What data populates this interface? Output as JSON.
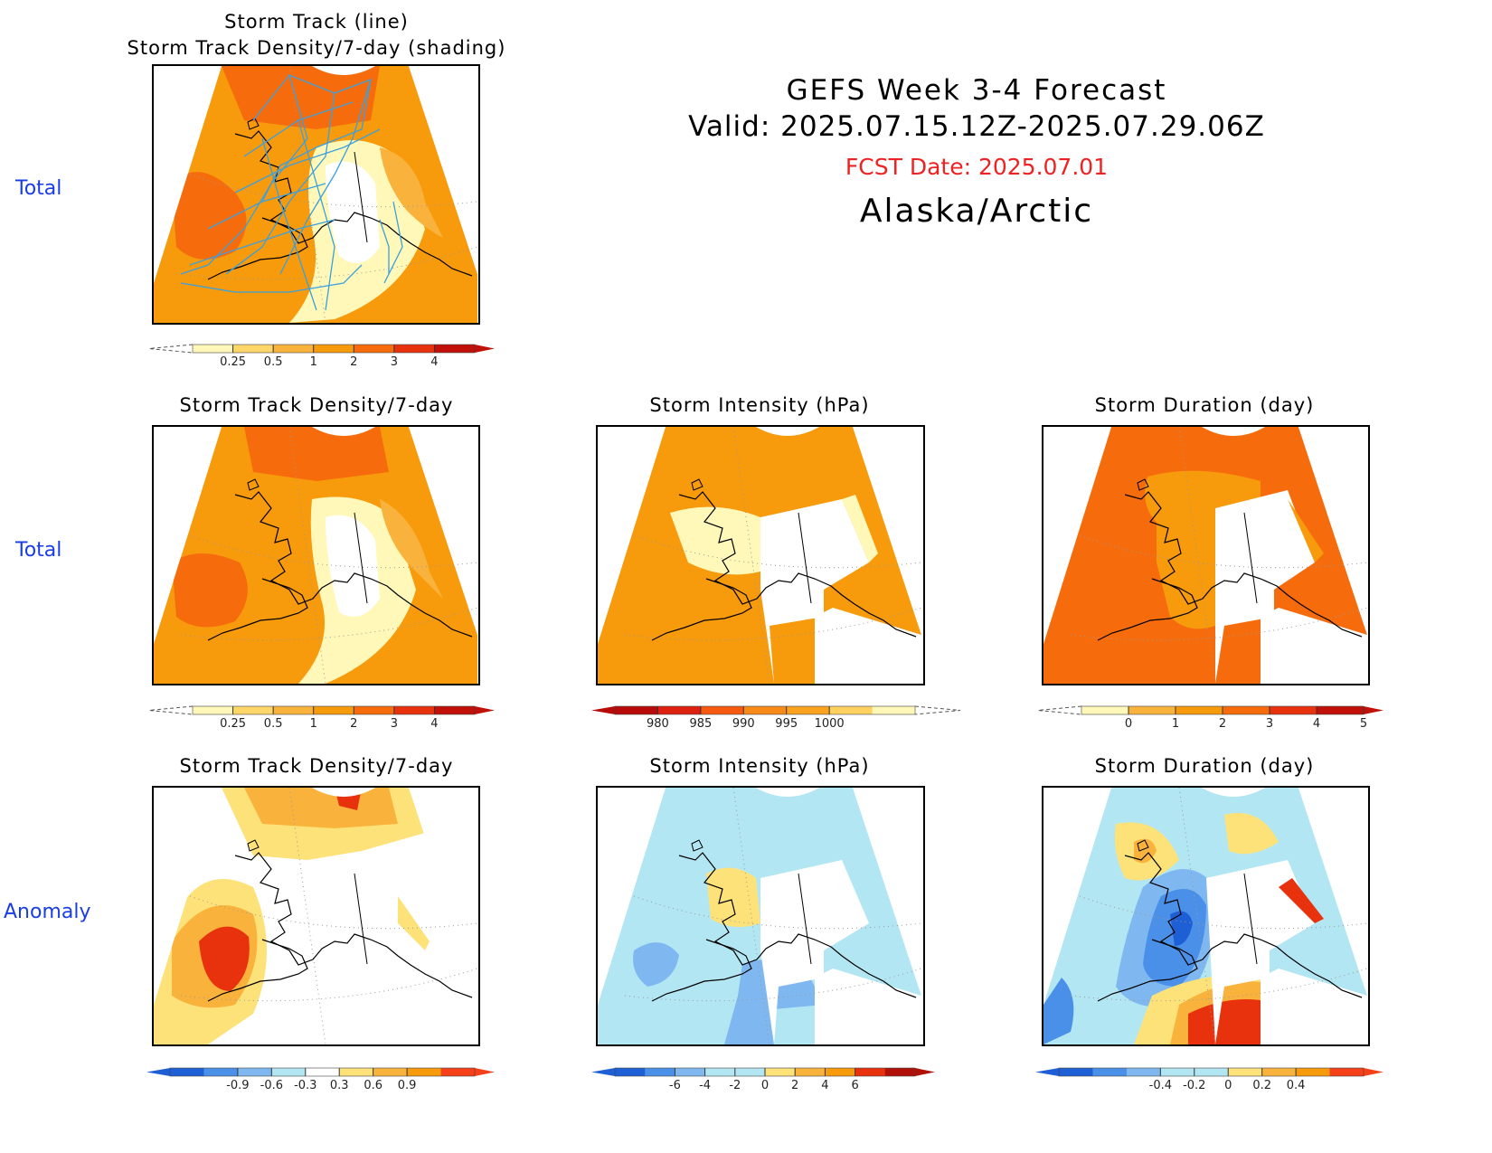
{
  "header": {
    "title_line1": "GEFS Week 3-4 Forecast",
    "title_line2": "Valid: 2025.07.15.12Z-2025.07.29.06Z",
    "fcst_date": "FCST Date: 2025.07.01",
    "region": "Alaska/Arctic"
  },
  "row_labels": {
    "row1": "Total",
    "row2": "Total",
    "row3": "Anomaly"
  },
  "panels": {
    "p1": {
      "title": "Storm Track (line)\nStorm Track Density/7-day (shading)"
    },
    "p2": {
      "title": "Storm Track Density/7-day"
    },
    "p3": {
      "title": "Storm Intensity (hPa)"
    },
    "p4": {
      "title": "Storm Duration (day)"
    },
    "p5": {
      "title": "Storm Track Density/7-day"
    },
    "p6": {
      "title": "Storm Intensity (hPa)"
    },
    "p7": {
      "title": "Storm Duration (day)"
    }
  },
  "colorbars": {
    "density": {
      "ticks": [
        "0.25",
        "0.5",
        "1",
        "2",
        "3",
        "4"
      ],
      "colors": [
        "#fff8b8",
        "#fdd66a",
        "#f9b33c",
        "#f79a0c",
        "#f66c0d",
        "#e8320e",
        "#c01008"
      ]
    },
    "intensity": {
      "ticks": [
        "980",
        "985",
        "990",
        "995",
        "1000"
      ],
      "colors": [
        "#b80a08",
        "#dd2010",
        "#f55a10",
        "#f88a18",
        "#faa220",
        "#fed060",
        "#fff8b8"
      ]
    },
    "duration": {
      "ticks": [
        "0",
        "1",
        "2",
        "3",
        "4",
        "5"
      ],
      "colors": [
        "#fff8b8",
        "#f9b33c",
        "#f79a0c",
        "#f66c0d",
        "#e8320e",
        "#c01008"
      ]
    },
    "density_anom": {
      "ticks": [
        "-0.9",
        "-0.6",
        "-0.3",
        "0.3",
        "0.6",
        "0.9"
      ],
      "colors": [
        "#1f5fd6",
        "#4a90e8",
        "#7fb8f0",
        "#b3e6f3",
        "#ffffff",
        "#fde27a",
        "#f9b33c",
        "#f79a0c",
        "#f5401a"
      ]
    },
    "intensity_anom": {
      "ticks": [
        "-6",
        "-4",
        "-2",
        "0",
        "2",
        "4",
        "6"
      ],
      "colors": [
        "#1f5fd6",
        "#4a90e8",
        "#7fb8f0",
        "#b3e6f3",
        "#b3e6f3",
        "#fde27a",
        "#f9b33c",
        "#f79a0c",
        "#e8320e",
        "#b01008"
      ]
    },
    "duration_anom": {
      "ticks": [
        "-0.4",
        "-0.2",
        "0",
        "0.2",
        "0.4"
      ],
      "colors": [
        "#1f5fd6",
        "#4a90e8",
        "#7fb8f0",
        "#b3e6f3",
        "#b3e6f3",
        "#fde27a",
        "#f9b33c",
        "#f79a0c",
        "#f5401a"
      ]
    }
  }
}
